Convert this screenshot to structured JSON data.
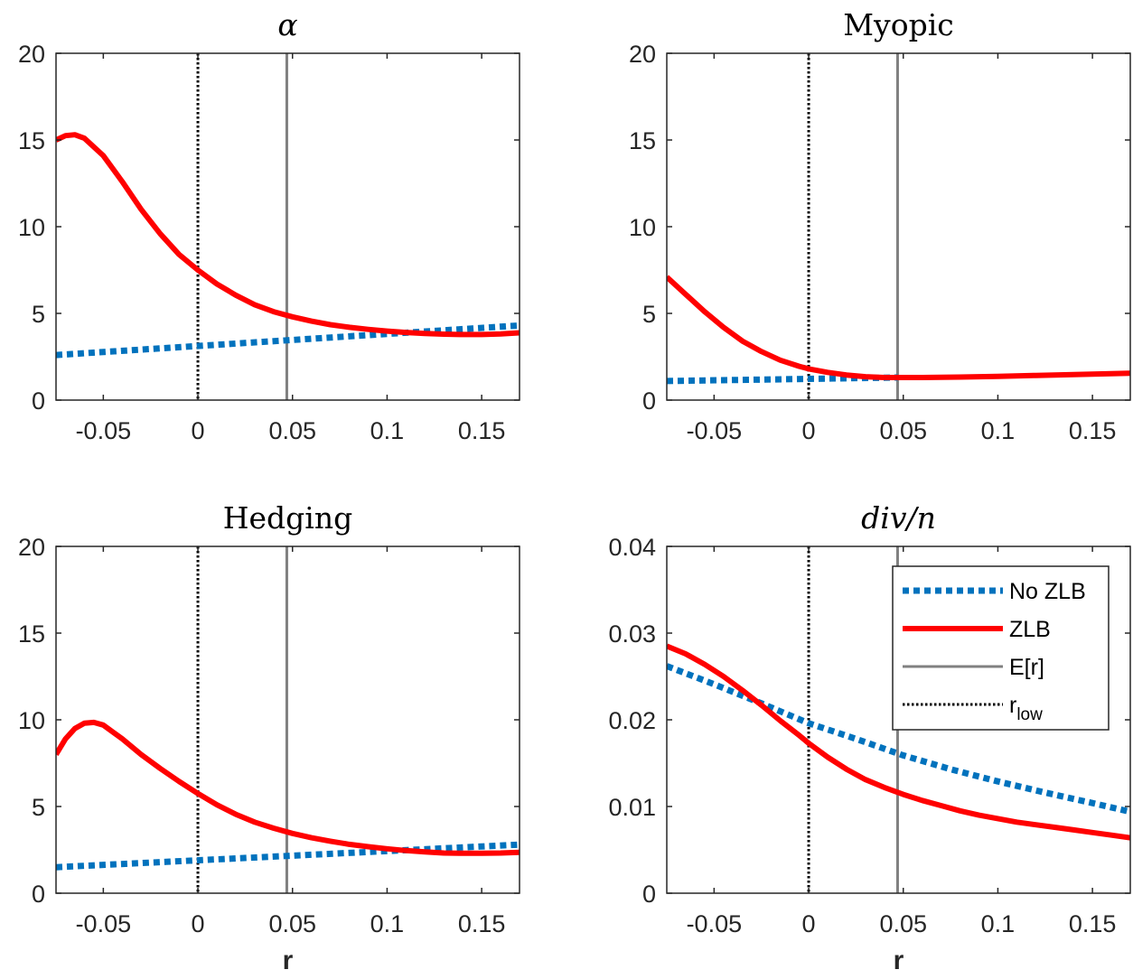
{
  "colors": {
    "no_zlb": "#0072BD",
    "zlb": "#FF0000",
    "expected_r": "#808080",
    "r_low": "#000000",
    "axes": "#262626"
  },
  "chart_data": [
    {
      "type": "line",
      "title": "α",
      "title_italic": true,
      "xlabel": "",
      "xlim": [
        -0.075,
        0.17
      ],
      "ylim": [
        0,
        20
      ],
      "xticks": [
        -0.05,
        0,
        0.05,
        0.1,
        0.15
      ],
      "xtick_labels": [
        "-0.05",
        "0",
        "0.05",
        "0.1",
        "0.15"
      ],
      "yticks": [
        0,
        5,
        10,
        15,
        20
      ],
      "ytick_labels": [
        "0",
        "5",
        "10",
        "15",
        "20"
      ],
      "vlines": {
        "expected_r": 0.047,
        "r_low": 0
      },
      "series": [
        {
          "key": "no_zlb",
          "x": [
            -0.075,
            0.17
          ],
          "y": [
            2.6,
            4.3
          ]
        },
        {
          "key": "zlb",
          "x": [
            -0.075,
            -0.07,
            -0.065,
            -0.06,
            -0.05,
            -0.04,
            -0.03,
            -0.02,
            -0.01,
            0,
            0.01,
            0.02,
            0.03,
            0.04,
            0.05,
            0.06,
            0.07,
            0.08,
            0.09,
            0.1,
            0.11,
            0.12,
            0.13,
            0.14,
            0.15,
            0.16,
            0.17
          ],
          "y": [
            15.0,
            15.25,
            15.3,
            15.1,
            14.1,
            12.6,
            11.0,
            9.6,
            8.4,
            7.5,
            6.7,
            6.05,
            5.5,
            5.1,
            4.8,
            4.55,
            4.35,
            4.2,
            4.08,
            3.98,
            3.9,
            3.84,
            3.8,
            3.78,
            3.78,
            3.82,
            3.88
          ]
        }
      ]
    },
    {
      "type": "line",
      "title": "Myopic",
      "title_italic": false,
      "xlabel": "",
      "xlim": [
        -0.075,
        0.17
      ],
      "ylim": [
        0,
        20
      ],
      "xticks": [
        -0.05,
        0,
        0.05,
        0.1,
        0.15
      ],
      "xtick_labels": [
        "-0.05",
        "0",
        "0.05",
        "0.1",
        "0.15"
      ],
      "yticks": [
        0,
        5,
        10,
        15,
        20
      ],
      "ytick_labels": [
        "0",
        "5",
        "10",
        "15",
        "20"
      ],
      "vlines": {
        "expected_r": 0.047,
        "r_low": 0
      },
      "series": [
        {
          "key": "no_zlb",
          "x": [
            -0.075,
            0.047
          ],
          "y": [
            1.1,
            1.3
          ]
        },
        {
          "key": "zlb",
          "x": [
            -0.075,
            -0.065,
            -0.055,
            -0.045,
            -0.035,
            -0.025,
            -0.015,
            -0.005,
            0,
            0.01,
            0.02,
            0.03,
            0.04,
            0.05,
            0.06,
            0.08,
            0.1,
            0.12,
            0.14,
            0.17
          ],
          "y": [
            7.1,
            6.1,
            5.1,
            4.2,
            3.4,
            2.8,
            2.3,
            1.95,
            1.8,
            1.6,
            1.45,
            1.35,
            1.3,
            1.3,
            1.3,
            1.33,
            1.37,
            1.42,
            1.47,
            1.55
          ]
        }
      ]
    },
    {
      "type": "line",
      "title": "Hedging",
      "title_italic": false,
      "xlabel": "r",
      "xlim": [
        -0.075,
        0.17
      ],
      "ylim": [
        0,
        20
      ],
      "xticks": [
        -0.05,
        0,
        0.05,
        0.1,
        0.15
      ],
      "xtick_labels": [
        "-0.05",
        "0",
        "0.05",
        "0.1",
        "0.15"
      ],
      "yticks": [
        0,
        5,
        10,
        15,
        20
      ],
      "ytick_labels": [
        "0",
        "5",
        "10",
        "15",
        "20"
      ],
      "vlines": {
        "expected_r": 0.047,
        "r_low": 0
      },
      "series": [
        {
          "key": "no_zlb",
          "x": [
            -0.075,
            0.17
          ],
          "y": [
            1.5,
            2.8
          ]
        },
        {
          "key": "zlb",
          "x": [
            -0.075,
            -0.07,
            -0.065,
            -0.06,
            -0.055,
            -0.05,
            -0.04,
            -0.03,
            -0.02,
            -0.01,
            0,
            0.01,
            0.02,
            0.03,
            0.04,
            0.05,
            0.06,
            0.07,
            0.08,
            0.09,
            0.1,
            0.11,
            0.12,
            0.13,
            0.14,
            0.15,
            0.16,
            0.17
          ],
          "y": [
            8.0,
            8.9,
            9.5,
            9.8,
            9.85,
            9.7,
            8.9,
            8.0,
            7.2,
            6.45,
            5.75,
            5.1,
            4.55,
            4.1,
            3.75,
            3.45,
            3.2,
            3.0,
            2.82,
            2.68,
            2.56,
            2.46,
            2.38,
            2.32,
            2.3,
            2.3,
            2.32,
            2.36
          ]
        }
      ]
    },
    {
      "type": "line",
      "title": "div/n",
      "title_italic": true,
      "xlabel": "r",
      "xlim": [
        -0.075,
        0.17
      ],
      "ylim": [
        0,
        0.04
      ],
      "xticks": [
        -0.05,
        0,
        0.05,
        0.1,
        0.15
      ],
      "xtick_labels": [
        "-0.05",
        "0",
        "0.05",
        "0.1",
        "0.15"
      ],
      "yticks": [
        0,
        0.01,
        0.02,
        0.03,
        0.04
      ],
      "ytick_labels": [
        "0",
        "0.01",
        "0.02",
        "0.03",
        "0.04"
      ],
      "vlines": {
        "expected_r": 0.047,
        "r_low": 0
      },
      "series": [
        {
          "key": "no_zlb",
          "x": [
            -0.075,
            -0.05,
            -0.025,
            0,
            0.025,
            0.05,
            0.075,
            0.1,
            0.125,
            0.15,
            0.17
          ],
          "y": [
            0.0262,
            0.0241,
            0.0219,
            0.0196,
            0.0178,
            0.0159,
            0.0143,
            0.0129,
            0.0116,
            0.0104,
            0.0094
          ]
        },
        {
          "key": "zlb",
          "x": [
            -0.075,
            -0.065,
            -0.055,
            -0.045,
            -0.035,
            -0.025,
            -0.015,
            -0.005,
            0,
            0.01,
            0.02,
            0.03,
            0.04,
            0.05,
            0.06,
            0.07,
            0.08,
            0.09,
            0.1,
            0.11,
            0.12,
            0.13,
            0.14,
            0.15,
            0.16,
            0.17
          ],
          "y": [
            0.0285,
            0.0276,
            0.0264,
            0.025,
            0.0234,
            0.0217,
            0.0199,
            0.0182,
            0.0173,
            0.0157,
            0.0143,
            0.0131,
            0.0122,
            0.0114,
            0.0107,
            0.0101,
            0.0095,
            0.009,
            0.0086,
            0.0082,
            0.0079,
            0.0076,
            0.0073,
            0.007,
            0.0067,
            0.0064
          ]
        }
      ],
      "legend": {
        "placement": "top-right",
        "entries": [
          {
            "key": "no_zlb",
            "label": "No ZLB"
          },
          {
            "key": "zlb",
            "label": "ZLB"
          },
          {
            "key": "expected_r",
            "label": "E[r]"
          },
          {
            "key": "r_low",
            "label": "r",
            "sub": "low"
          }
        ]
      }
    }
  ]
}
